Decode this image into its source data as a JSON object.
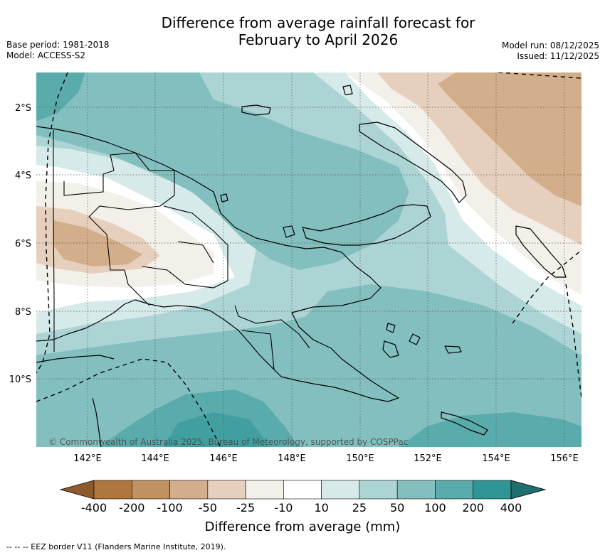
{
  "title_line1": "Difference from average rainfall forecast for",
  "title_line2": "February to April 2026",
  "meta_left": [
    "Base period: 1981-2018",
    "Model: ACCESS-S2"
  ],
  "meta_right": [
    "Model run: 08/12/2025",
    "Issued: 11/12/2025"
  ],
  "lat_ticks": [
    "2°S",
    "4°S",
    "6°S",
    "8°S",
    "10°S"
  ],
  "lon_ticks": [
    "142°E",
    "144°E",
    "146°E",
    "148°E",
    "150°E",
    "152°E",
    "154°E",
    "156°E"
  ],
  "copyright": "© Commonwealth of Australia 2025, Bureau of Meteorology, supported by COSPPac",
  "colorbar": {
    "title": "Difference from average (mm)",
    "labels": [
      "-400",
      "-200",
      "-100",
      "-50",
      "-25",
      "-10",
      "10",
      "25",
      "50",
      "100",
      "200",
      "400"
    ],
    "colors": [
      "#8c5a2b",
      "#b0773d",
      "#c29162",
      "#d3ae8b",
      "#e6cfbc",
      "#f3efe9",
      "#ffffff",
      "#d6eae9",
      "#acd4d4",
      "#83bfbf",
      "#5aabab",
      "#2f9695",
      "#1f6f6e"
    ]
  },
  "footnote": "--  --  -- EEZ border V11 (Flanders Marine Institute, 2019)."
}
